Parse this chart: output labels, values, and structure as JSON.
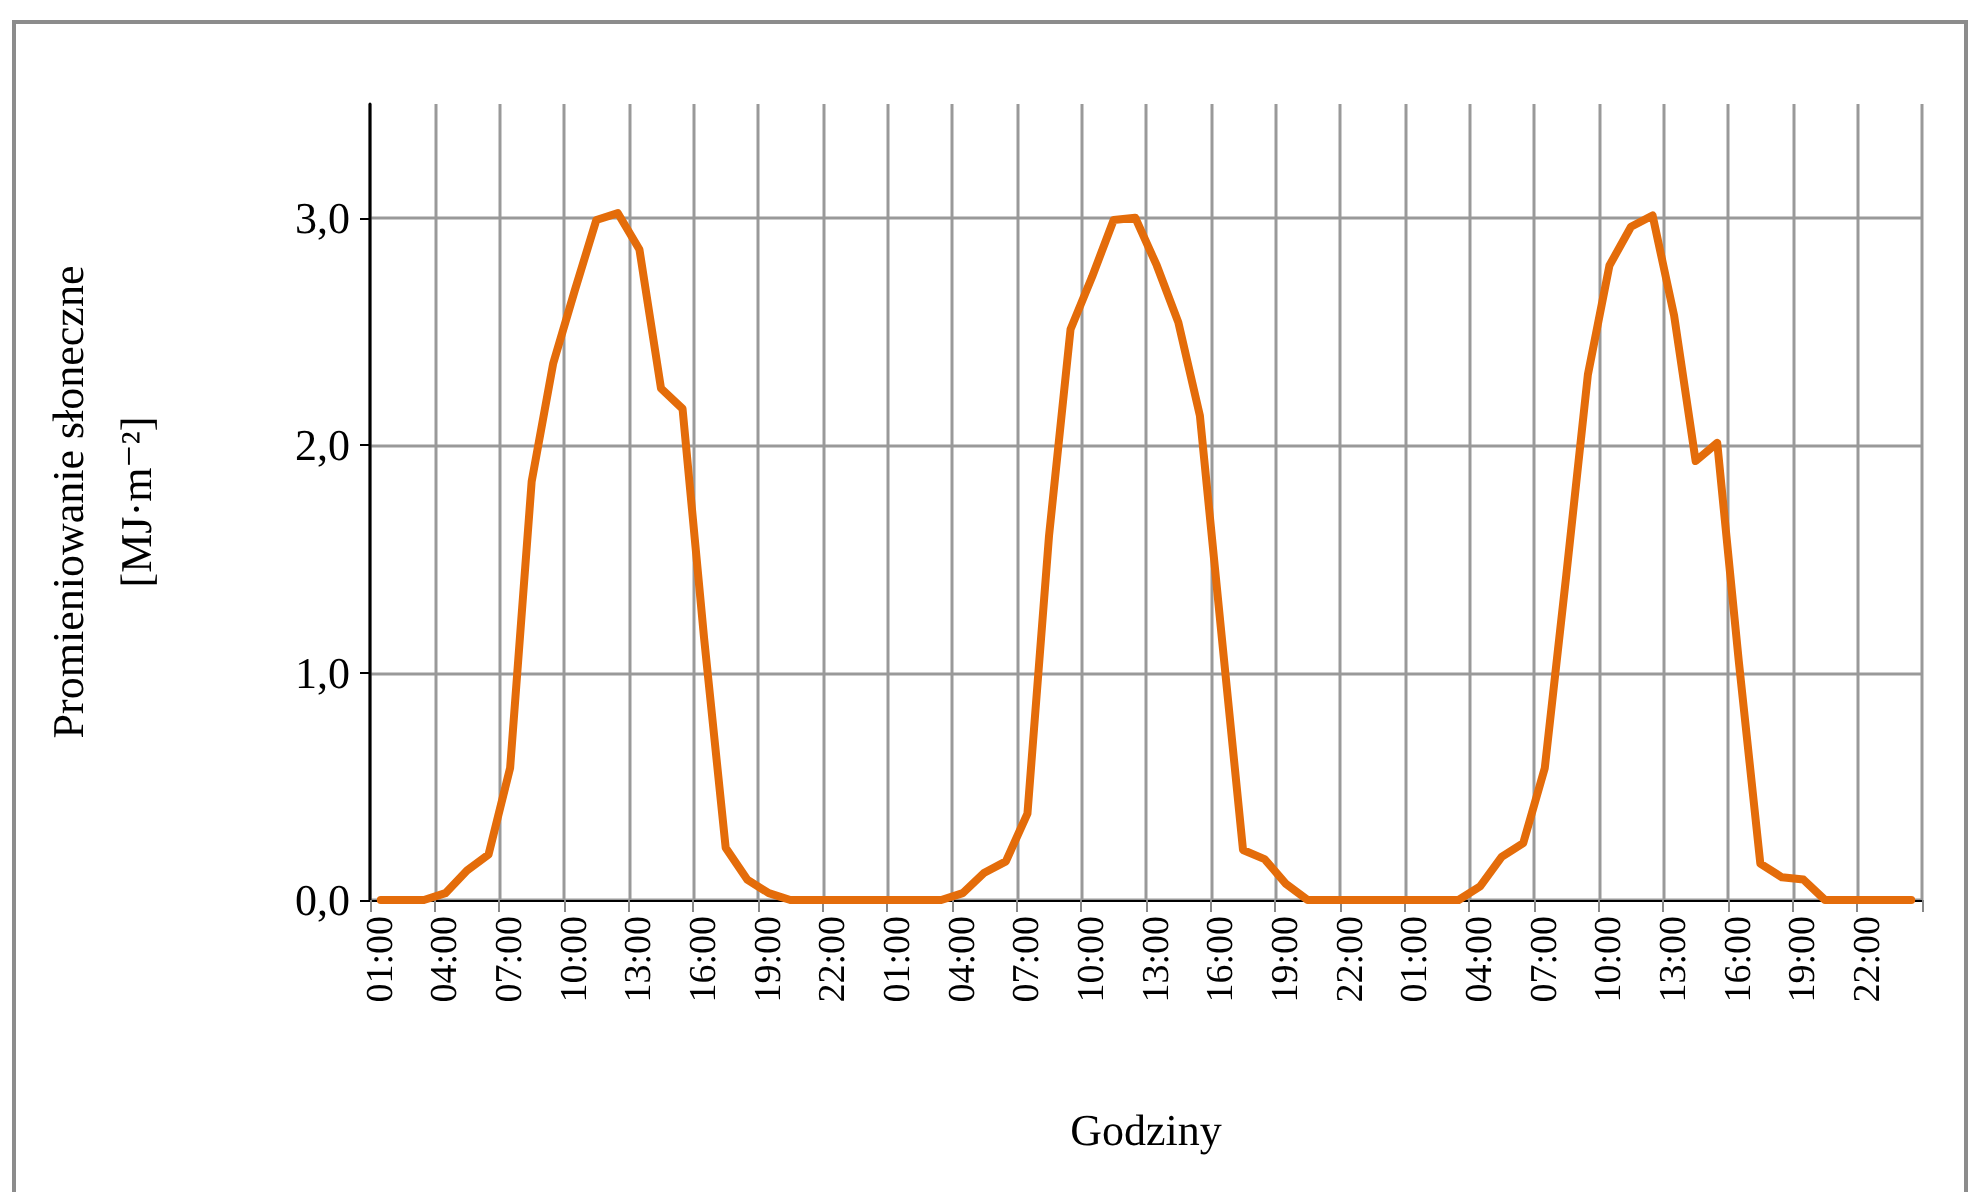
{
  "chart_data": {
    "type": "line",
    "xlabel": "Godziny",
    "ylabel": "Promieniowanie słoneczne\n[MJ·m⁻²]",
    "categories": [
      "01:00",
      null,
      null,
      "04:00",
      null,
      null,
      "07:00",
      null,
      null,
      "10:00",
      null,
      null,
      "13:00",
      null,
      null,
      "16:00",
      null,
      null,
      "19:00",
      null,
      null,
      "22:00",
      null,
      null,
      "01:00",
      null,
      null,
      "04:00",
      null,
      null,
      "07:00",
      null,
      null,
      "10:00",
      null,
      null,
      "13:00",
      null,
      null,
      "16:00",
      null,
      null,
      "19:00",
      null,
      null,
      "22:00",
      null,
      null,
      "01:00",
      null,
      null,
      "04:00",
      null,
      null,
      "07:00",
      null,
      null,
      "10:00",
      null,
      null,
      "13:00",
      null,
      null,
      "16:00",
      null,
      null,
      "19:00",
      null,
      null,
      "22:00",
      null,
      null
    ],
    "series": [
      {
        "color": "#e46c0a",
        "values": [
          0,
          0,
          0,
          0.03,
          0.13,
          0.2,
          0.58,
          1.84,
          2.36,
          2.68,
          2.99,
          3.02,
          2.86,
          2.25,
          2.16,
          1.15,
          0.23,
          0.09,
          0.03,
          0,
          0,
          0,
          0,
          0,
          0,
          0,
          0,
          0.03,
          0.12,
          0.17,
          0.38,
          1.6,
          2.51,
          2.74,
          2.99,
          3.0,
          2.79,
          2.54,
          2.13,
          1.17,
          0.22,
          0.18,
          0.07,
          0,
          0,
          0,
          0,
          0,
          0,
          0,
          0,
          0.06,
          0.19,
          0.25,
          0.58,
          1.43,
          2.31,
          2.79,
          2.96,
          3.01,
          2.57,
          1.93,
          2.01,
          1.05,
          0.16,
          0.1,
          0.09,
          0,
          0,
          0,
          0,
          0
        ]
      }
    ],
    "ylim": [
      0,
      3.5
    ],
    "yticks": [
      {
        "value": 0,
        "label": "0,0"
      },
      {
        "value": 1,
        "label": "1,0"
      },
      {
        "value": 2,
        "label": "2,0"
      },
      {
        "value": 3,
        "label": "3,0"
      }
    ],
    "grid": true,
    "marker": "none",
    "line_style": "solid"
  }
}
